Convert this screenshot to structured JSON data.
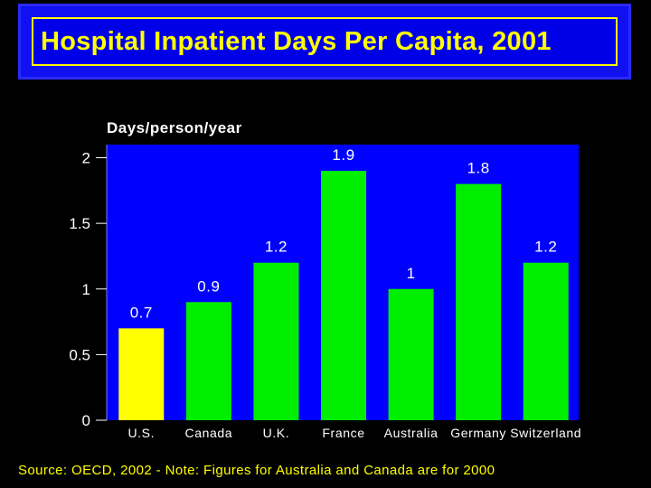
{
  "slide": {
    "title": "Hospital Inpatient Days Per Capita, 2001",
    "source": "Source: OECD, 2002 - Note: Figures for Australia and Canada are for 2000"
  },
  "colors": {
    "background": "#000000",
    "plot_background": "#0000ff",
    "banner": "#1010f0",
    "title_text": "#ffff00",
    "highlight_bar": "#ffff00",
    "bar": "#00ee00",
    "text": "#ffffff"
  },
  "chart_data": {
    "type": "bar",
    "title": "Hospital Inpatient Days Per Capita, 2001",
    "ylabel": "Days/person/year",
    "xlabel": "",
    "ylim": [
      0,
      2.1
    ],
    "yticks": [
      0,
      0.5,
      1,
      1.5,
      2
    ],
    "ytick_labels": [
      "0",
      "0.5",
      "1",
      "1.5",
      "2"
    ],
    "categories": [
      "U.S.",
      "Canada",
      "U.K.",
      "France",
      "Australia",
      "Germany",
      "Switzerland"
    ],
    "values": [
      0.7,
      0.9,
      1.2,
      1.9,
      1,
      1.8,
      1.2
    ],
    "value_labels": [
      "0.7",
      "0.9",
      "1.2",
      "1.9",
      "1",
      "1.8",
      "1.2"
    ],
    "highlight": "U.S.",
    "grid": false,
    "legend": "none"
  }
}
